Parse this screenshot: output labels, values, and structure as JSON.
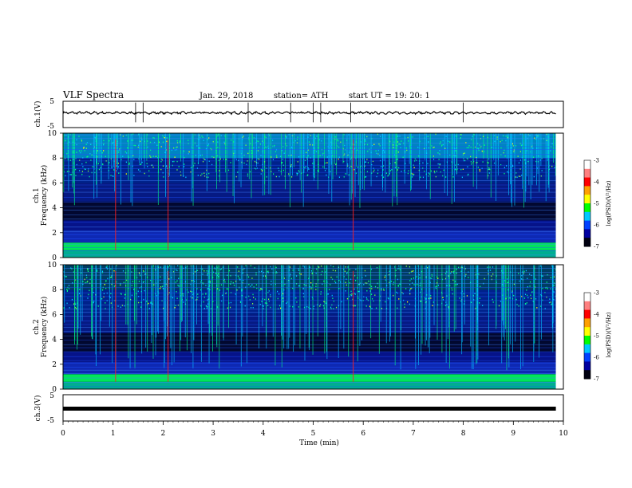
{
  "header": {
    "title": "VLF  Spectra",
    "date": "Jan. 29, 2018",
    "station": "station= ATH",
    "start": "start  UT  =    19: 20: 1"
  },
  "chart_data": [
    {
      "type": "line",
      "panel": "ch1-waveform",
      "ylabel": "ch.1(V)",
      "ylim": [
        -5,
        5
      ],
      "yticks": [
        "5",
        "-5"
      ],
      "xlim": [
        0,
        10
      ],
      "series": [
        {
          "values_note_level": 0.6
        }
      ],
      "trace_level_v": 0.6,
      "spike_times_min": [
        1.45,
        1.6,
        3.7,
        4.55,
        5.0,
        5.15,
        5.75,
        8.0
      ]
    },
    {
      "type": "heatmap",
      "panel": "ch1-spectrogram",
      "ylabel": "ch.1\nFrequency  (kHz)",
      "ylabel_channel": "ch.1",
      "ylabel_axis": "Frequency  (kHz)",
      "ylim": [
        0,
        10
      ],
      "yticks": [
        "0",
        "2",
        "4",
        "6",
        "8",
        "10"
      ],
      "xlim": [
        0,
        9.85
      ],
      "colorbar": {
        "label": "log(PSD)(V²/Hz)",
        "ticks": [
          "-3",
          "-4",
          "-5",
          "-6",
          "-7"
        ],
        "range": [
          -7,
          -3
        ]
      },
      "vertical_markers_min": [
        1.05,
        2.1,
        5.8
      ]
    },
    {
      "type": "heatmap",
      "panel": "ch2-spectrogram",
      "ylabel_channel": "ch.2",
      "ylabel_axis": "Frequency  (kHz)",
      "ylim": [
        0,
        10
      ],
      "yticks": [
        "0",
        "2",
        "4",
        "6",
        "8",
        "10"
      ],
      "xlim": [
        0,
        9.85
      ],
      "colorbar": {
        "label": "log(PSD)(V²/Hz)",
        "ticks": [
          "-3",
          "-4",
          "-5",
          "-6",
          "-7"
        ],
        "range": [
          -7,
          -3
        ]
      },
      "vertical_markers_min": [
        1.05,
        2.1,
        5.8
      ]
    },
    {
      "type": "line",
      "panel": "ch3-waveform",
      "ylabel": "ch.3(V)",
      "ylim": [
        -5,
        5
      ],
      "yticks": [
        "5",
        "-5"
      ],
      "xlim": [
        0,
        10
      ],
      "trace_level_v": -0.3,
      "xlabel": "Time  (min)",
      "xticks": [
        "0",
        "1",
        "2",
        "3",
        "4",
        "5",
        "6",
        "7",
        "8",
        "9",
        "10"
      ]
    }
  ],
  "colors": {
    "background_dark": "#000010",
    "low": "#0000a0",
    "mid": "#00c8ff",
    "high": "#00ff80",
    "hot": "#ffff00",
    "marker": "#ff2020",
    "trace": "#000000"
  }
}
